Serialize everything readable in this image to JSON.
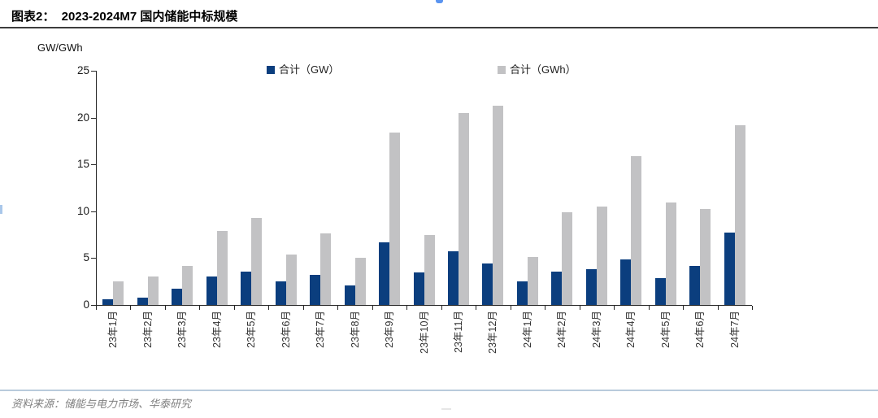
{
  "header": {
    "title": "图表2：  2023-2024M7 国内储能中标规模"
  },
  "footer": {
    "source": "资料来源：储能与电力市场、华泰研究"
  },
  "chart_data": {
    "type": "bar",
    "title": "2023-2024M7 国内储能中标规模",
    "unit_label": "GW/GWh",
    "xlabel": "",
    "ylabel": "GW/GWh",
    "ylim": [
      0,
      25
    ],
    "yticks": [
      0,
      5,
      10,
      15,
      20,
      25
    ],
    "grid": false,
    "legend_position": "top",
    "categories": [
      "23年1月",
      "23年2月",
      "23年3月",
      "23年4月",
      "23年5月",
      "23年6月",
      "23年7月",
      "23年8月",
      "23年9月",
      "23年10月",
      "23年11月",
      "23年12月",
      "24年1月",
      "24年2月",
      "24年3月",
      "24年4月",
      "24年5月",
      "24年6月",
      "24年7月"
    ],
    "series": [
      {
        "name": "合计（GW）",
        "color": "#0b3e7e",
        "values": [
          0.6,
          0.8,
          1.7,
          3.0,
          3.6,
          2.5,
          3.2,
          2.1,
          6.7,
          3.5,
          5.7,
          4.4,
          2.5,
          3.6,
          3.8,
          4.9,
          2.9,
          4.2,
          7.7
        ]
      },
      {
        "name": "合计（GWh）",
        "color": "#c2c2c4",
        "values": [
          2.5,
          3.0,
          4.2,
          7.9,
          9.3,
          5.4,
          7.6,
          5.0,
          18.4,
          7.5,
          20.5,
          21.3,
          5.1,
          9.9,
          10.5,
          15.9,
          10.9,
          10.2,
          19.2
        ]
      }
    ]
  }
}
